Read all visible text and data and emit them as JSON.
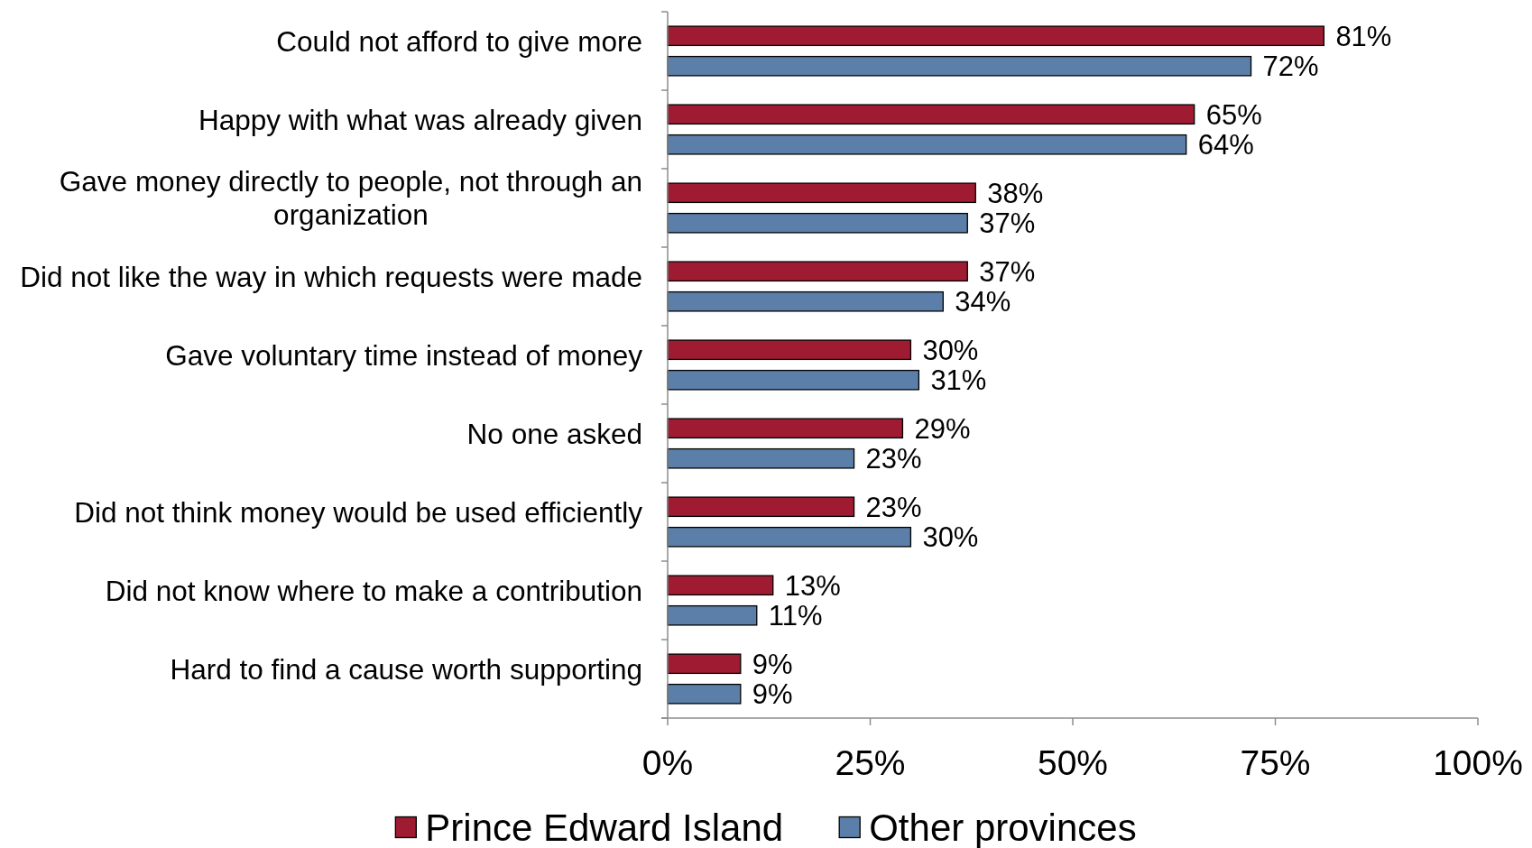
{
  "chart_data": {
    "type": "bar",
    "orientation": "horizontal",
    "categories": [
      "Could not afford to give more",
      "Happy with what was already given",
      "Gave money directly to people, not through an organization",
      "Did not like the way in which requests were made",
      "Gave voluntary time instead of money",
      "No one asked",
      "Did not think money would be used efficiently",
      "Did not know where to make a contribution",
      "Hard to find a cause worth supporting"
    ],
    "series": [
      {
        "name": "Prince Edward Island",
        "color": "#9e1b32",
        "values": [
          81,
          65,
          38,
          37,
          30,
          29,
          23,
          13,
          9
        ],
        "value_labels": [
          "81%",
          "65%",
          "38%",
          "37%",
          "30%",
          "29%",
          "23%",
          "13%",
          "9%"
        ]
      },
      {
        "name": "Other provinces",
        "color": "#5b7fa8",
        "values": [
          72,
          64,
          37,
          34,
          31,
          23,
          30,
          11,
          9
        ],
        "value_labels": [
          "72%",
          "64%",
          "37%",
          "34%",
          "31%",
          "23%",
          "30%",
          "11%",
          "9%"
        ]
      }
    ],
    "xlim": [
      0,
      100
    ],
    "xticks": [
      {
        "value": 0,
        "label": "0%"
      },
      {
        "value": 25,
        "label": "25%"
      },
      {
        "value": 50,
        "label": "50%"
      },
      {
        "value": 75,
        "label": "75%"
      },
      {
        "value": 100,
        "label": "100%"
      }
    ],
    "grid": false,
    "legend": "bottom"
  }
}
